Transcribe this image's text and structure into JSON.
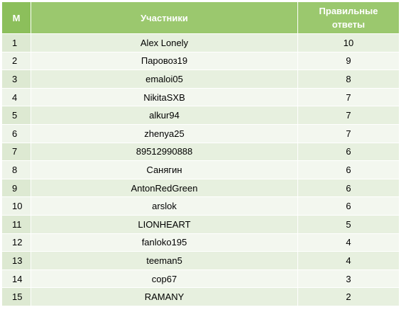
{
  "table": {
    "headers": {
      "num": "М",
      "name": "Участники",
      "score_line1": "Правильные",
      "score_line2": "ответы"
    },
    "colors": {
      "header_bg": "#9bc86e",
      "row_band_dark": "#e7f0df",
      "row_band_light": "#f3f7ef"
    },
    "rows": [
      {
        "num": "1",
        "name": "Alex Lonely",
        "score": "10"
      },
      {
        "num": "2",
        "name": "Паровоз19",
        "score": "9"
      },
      {
        "num": "3",
        "name": "emaloi05",
        "score": "8"
      },
      {
        "num": "4",
        "name": "NikitaSXB",
        "score": "7"
      },
      {
        "num": "5",
        "name": "alkur94",
        "score": "7"
      },
      {
        "num": "6",
        "name": "zhenya25",
        "score": "7"
      },
      {
        "num": "7",
        "name": "89512990888",
        "score": "6"
      },
      {
        "num": "8",
        "name": "Санягин",
        "score": "6"
      },
      {
        "num": "9",
        "name": "AntonRedGreen",
        "score": "6"
      },
      {
        "num": "10",
        "name": "arslok",
        "score": "6"
      },
      {
        "num": "11",
        "name": "LIONHEART",
        "score": "5"
      },
      {
        "num": "12",
        "name": "fanloko195",
        "score": "4"
      },
      {
        "num": "13",
        "name": "teeman5",
        "score": "4"
      },
      {
        "num": "14",
        "name": "cop67",
        "score": "3"
      },
      {
        "num": "15",
        "name": "RAMANY",
        "score": "2"
      }
    ]
  }
}
